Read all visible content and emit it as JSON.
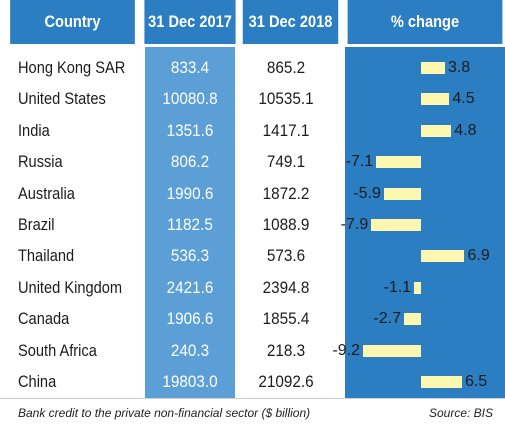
{
  "chart_data": {
    "type": "table",
    "columns": [
      "Country",
      "31 Dec 2017",
      "31 Dec 2018",
      "% change"
    ],
    "rows": [
      {
        "country": "Hong Kong SAR",
        "v2017": "833.4",
        "v2018": "865.2",
        "change": 3.8
      },
      {
        "country": "United States",
        "v2017": "10080.8",
        "v2018": "10535.1",
        "change": 4.5
      },
      {
        "country": "India",
        "v2017": "1351.6",
        "v2018": "1417.1",
        "change": 4.8
      },
      {
        "country": "Russia",
        "v2017": "806.2",
        "v2018": "749.1",
        "change": -7.1
      },
      {
        "country": "Australia",
        "v2017": "1990.6",
        "v2018": "1872.2",
        "change": -5.9
      },
      {
        "country": "Brazil",
        "v2017": "1182.5",
        "v2018": "1088.9",
        "change": -7.9
      },
      {
        "country": "Thailand",
        "v2017": "536.3",
        "v2018": "573.6",
        "change": 6.9
      },
      {
        "country": "United Kingdom",
        "v2017": "2421.6",
        "v2018": "2394.8",
        "change": -1.1
      },
      {
        "country": "Canada",
        "v2017": "1906.6",
        "v2018": "1855.4",
        "change": -2.7
      },
      {
        "country": "South Africa",
        "v2017": "240.3",
        "v2018": "218.3",
        "change": -9.2
      },
      {
        "country": "China",
        "v2017": "19803.0",
        "v2018": "21092.6",
        "change": 6.5
      }
    ],
    "footnote": "Bank credit to the private non-financial sector ($ billion)",
    "source": "Source: BIS"
  },
  "colors": {
    "header": "#2b7ec1",
    "highlight_column": "#5b9fd6",
    "change_column": "#2b7ec1",
    "bar": "#fff6b0"
  }
}
